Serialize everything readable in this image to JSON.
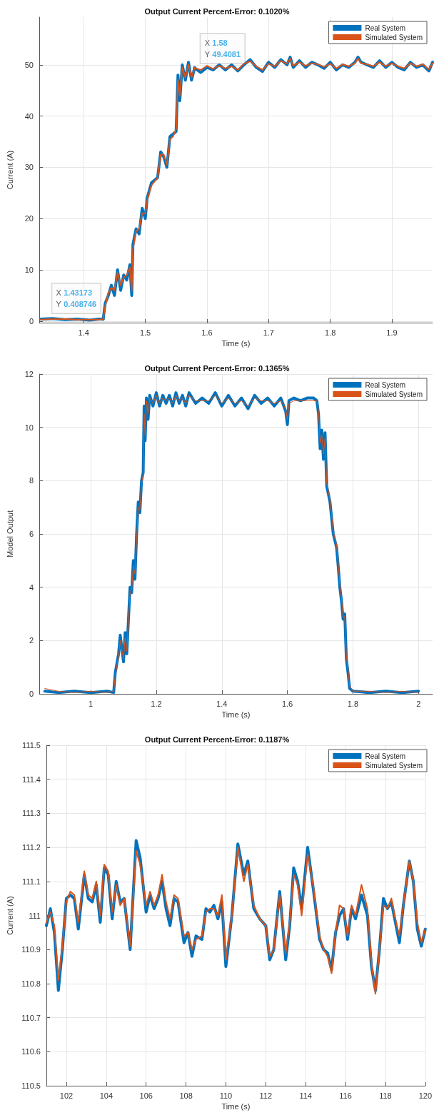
{
  "chart_data": [
    {
      "type": "line",
      "title": "Output Current Percent-Error: 0.1020%",
      "xlabel": "Time (s)",
      "ylabel": "Current (A)",
      "xlim": [
        1.328,
        1.966
      ],
      "ylim": [
        -0.3,
        59.3
      ],
      "xticks": [
        1.4,
        1.5,
        1.6,
        1.7,
        1.8,
        1.9
      ],
      "yticks": [
        0,
        10,
        20,
        30,
        40,
        50
      ],
      "grid": true,
      "legend": "top right",
      "marker": "none",
      "line_style": "solid",
      "x": [
        1.33,
        1.35,
        1.37,
        1.39,
        1.41,
        1.425,
        1.4317,
        1.435,
        1.44,
        1.445,
        1.45,
        1.455,
        1.46,
        1.465,
        1.47,
        1.475,
        1.478,
        1.48,
        1.485,
        1.49,
        1.495,
        1.5,
        1.503,
        1.51,
        1.52,
        1.525,
        1.53,
        1.535,
        1.54,
        1.545,
        1.55,
        1.553,
        1.556,
        1.56,
        1.565,
        1.57,
        1.575,
        1.58,
        1.59,
        1.6,
        1.61,
        1.62,
        1.63,
        1.64,
        1.65,
        1.66,
        1.67,
        1.68,
        1.69,
        1.7,
        1.71,
        1.72,
        1.73,
        1.735,
        1.74,
        1.75,
        1.76,
        1.77,
        1.78,
        1.79,
        1.8,
        1.81,
        1.82,
        1.83,
        1.84,
        1.845,
        1.85,
        1.86,
        1.87,
        1.88,
        1.89,
        1.9,
        1.91,
        1.92,
        1.93,
        1.94,
        1.95,
        1.96,
        1.966
      ],
      "series": [
        {
          "name": "Real System",
          "color": "#0072bd",
          "values": [
            0.4,
            0.5,
            0.3,
            0.4,
            0.2,
            0.4,
            0.4,
            3.5,
            5,
            7,
            5,
            10,
            6,
            9,
            8,
            11,
            5,
            15,
            18,
            17,
            22,
            20,
            24,
            27,
            28,
            33,
            32,
            30,
            36,
            36.5,
            37,
            48,
            43,
            50,
            47,
            50.5,
            47,
            49.4,
            48.5,
            49.5,
            49,
            50,
            49,
            50,
            48.8,
            50,
            51,
            49.5,
            48.7,
            50.5,
            49.5,
            51,
            50,
            51.5,
            49.5,
            50.8,
            49.5,
            50.5,
            50,
            49.3,
            50.5,
            49,
            50,
            49.5,
            50.5,
            51.5,
            50.5,
            50,
            49.5,
            50.8,
            49.5,
            50.5,
            49.5,
            49,
            50.5,
            49.5,
            50,
            48.8,
            50.5
          ]
        },
        {
          "name": "Simulated System",
          "color": "#d95319",
          "values": [
            0.3,
            0.4,
            0.4,
            0.3,
            0.3,
            0.3,
            0.4,
            3,
            5.5,
            6.5,
            6,
            9.5,
            7,
            8.5,
            9,
            10.5,
            6,
            14,
            17.5,
            18,
            21,
            21,
            23.5,
            26.5,
            28,
            32.5,
            32.5,
            30.5,
            35.5,
            36,
            37.5,
            47,
            44,
            49.5,
            47.5,
            50,
            47.5,
            49.4,
            49,
            49.8,
            49.2,
            49.8,
            49.3,
            49.7,
            49,
            50.2,
            50.7,
            49.7,
            49,
            50.2,
            49.7,
            50.8,
            50.2,
            51.2,
            49.8,
            50.5,
            49.8,
            50.3,
            50.1,
            49.6,
            50.2,
            49.3,
            50.1,
            49.7,
            50.3,
            51.2,
            50.3,
            50.1,
            49.7,
            50.5,
            49.7,
            50.3,
            49.7,
            49.3,
            50.3,
            49.7,
            50.1,
            49.1,
            50.3
          ]
        }
      ],
      "annotations": [
        {
          "text": "X 1.58\nY 49.4081",
          "x": 1.58,
          "y": 49.4081
        },
        {
          "text": "X 1.43173\nY 0.408746",
          "x": 1.43173,
          "y": 0.408746
        }
      ]
    },
    {
      "type": "line",
      "title": "Output Current Percent-Error: 0.1365%",
      "xlabel": "Time (s)",
      "ylabel": "Model Output",
      "xlim": [
        0.843,
        2.043
      ],
      "ylim": [
        0,
        12
      ],
      "xticks": [
        1,
        1.2,
        1.4,
        1.6,
        1.8,
        2
      ],
      "yticks": [
        0,
        2,
        4,
        6,
        8,
        10,
        12
      ],
      "grid": true,
      "legend": "top right",
      "marker": "none",
      "line_style": "solid",
      "x": [
        0.86,
        0.9,
        0.95,
        1.0,
        1.05,
        1.07,
        1.075,
        1.085,
        1.09,
        1.1,
        1.105,
        1.11,
        1.12,
        1.125,
        1.13,
        1.135,
        1.14,
        1.145,
        1.15,
        1.155,
        1.16,
        1.163,
        1.166,
        1.17,
        1.175,
        1.18,
        1.19,
        1.2,
        1.21,
        1.22,
        1.23,
        1.24,
        1.25,
        1.26,
        1.27,
        1.28,
        1.29,
        1.3,
        1.32,
        1.34,
        1.36,
        1.38,
        1.4,
        1.42,
        1.44,
        1.46,
        1.48,
        1.5,
        1.52,
        1.54,
        1.56,
        1.58,
        1.595,
        1.6,
        1.605,
        1.62,
        1.64,
        1.66,
        1.68,
        1.69,
        1.695,
        1.7,
        1.705,
        1.71,
        1.715,
        1.72,
        1.73,
        1.74,
        1.75,
        1.755,
        1.76,
        1.765,
        1.77,
        1.775,
        1.78,
        1.785,
        1.79,
        1.8,
        1.85,
        1.9,
        1.95,
        2.0
      ],
      "series": [
        {
          "name": "Real System",
          "color": "#0072bd",
          "values": [
            0.1,
            0.05,
            0.1,
            0.05,
            0.1,
            0.05,
            0.8,
            1.5,
            2.2,
            1.2,
            2.3,
            1.5,
            4,
            3.8,
            5,
            4.3,
            6,
            7.2,
            6.8,
            8,
            8.3,
            10.8,
            9.5,
            11.1,
            10.3,
            11.2,
            10.8,
            11.3,
            10.8,
            11.2,
            10.9,
            11.2,
            10.8,
            11.3,
            10.9,
            11.2,
            10.8,
            11.3,
            10.9,
            11.1,
            10.9,
            11.3,
            10.8,
            11.2,
            10.8,
            11.1,
            10.7,
            11.2,
            10.9,
            11.1,
            10.8,
            11.1,
            10.6,
            10.1,
            11,
            11.1,
            11,
            11.1,
            11.1,
            11,
            10.5,
            9.2,
            9.9,
            8.8,
            9.8,
            7.8,
            7.2,
            6,
            5.5,
            4.8,
            4,
            3.5,
            2.8,
            3,
            1.3,
            0.8,
            0.2,
            0.1,
            0.05,
            0.1,
            0.05,
            0.1
          ]
        },
        {
          "name": "Simulated System",
          "color": "#d95319",
          "values": [
            0.2,
            0.1,
            0.05,
            0.1,
            0.05,
            0.1,
            0.7,
            1.4,
            2,
            1.3,
            2.1,
            1.6,
            3.8,
            3.9,
            4.8,
            4.5,
            5.8,
            7,
            6.9,
            7.9,
            8.2,
            10.5,
            9.7,
            11,
            10.5,
            11.1,
            10.9,
            11.2,
            10.9,
            11.1,
            11,
            11.1,
            10.9,
            11.2,
            11,
            11.1,
            10.9,
            11.2,
            11,
            11,
            11,
            11.2,
            10.9,
            11.1,
            10.9,
            11,
            10.8,
            11.1,
            11,
            11,
            10.9,
            11,
            10.7,
            10.3,
            10.9,
            11,
            11,
            11,
            11,
            11,
            10.6,
            9.4,
            9.7,
            9,
            9.6,
            7.9,
            7.3,
            6.1,
            5.6,
            4.9,
            4.1,
            3.6,
            2.9,
            2.9,
            1.4,
            0.9,
            0.3,
            0.1,
            0.1,
            0.05,
            0.1,
            0.05
          ]
        }
      ]
    },
    {
      "type": "line",
      "title": "Output Current Percent-Error: 0.1187%",
      "xlabel": "Time (s)",
      "ylabel": "Current (A)",
      "xlim": [
        101,
        120
      ],
      "ylim": [
        110.5,
        111.5
      ],
      "xticks": [
        102,
        104,
        106,
        108,
        110,
        112,
        114,
        116,
        118,
        120
      ],
      "yticks": [
        110.5,
        110.6,
        110.7,
        110.8,
        110.9,
        111,
        111.1,
        111.2,
        111.3,
        111.4,
        111.5
      ],
      "grid": true,
      "legend": "top right",
      "marker": "none",
      "line_style": "solid",
      "x": [
        101.0,
        101.2,
        101.4,
        101.6,
        101.8,
        102.0,
        102.2,
        102.4,
        102.6,
        102.9,
        103.1,
        103.3,
        103.5,
        103.7,
        103.9,
        104.1,
        104.3,
        104.5,
        104.7,
        104.9,
        105.2,
        105.5,
        105.7,
        106.0,
        106.2,
        106.4,
        106.6,
        106.8,
        107.0,
        107.2,
        107.4,
        107.6,
        107.9,
        108.1,
        108.3,
        108.5,
        108.8,
        109.0,
        109.2,
        109.4,
        109.6,
        109.8,
        110.0,
        110.3,
        110.6,
        110.9,
        111.1,
        111.4,
        111.7,
        112.0,
        112.2,
        112.4,
        112.7,
        113.0,
        113.2,
        113.4,
        113.6,
        113.8,
        114.1,
        114.4,
        114.7,
        114.9,
        115.1,
        115.3,
        115.5,
        115.7,
        115.9,
        116.1,
        116.3,
        116.5,
        116.8,
        117.1,
        117.3,
        117.5,
        117.7,
        117.9,
        118.1,
        118.3,
        118.5,
        118.7,
        118.9,
        119.2,
        119.4,
        119.6,
        119.8,
        120.0
      ],
      "series": [
        {
          "name": "Real System",
          "color": "#0072bd",
          "values": [
            110.97,
            111.02,
            110.95,
            110.78,
            110.9,
            111.05,
            111.06,
            111.05,
            110.96,
            111.12,
            111.05,
            111.04,
            111.09,
            110.98,
            111.14,
            111.12,
            110.99,
            111.1,
            111.04,
            111.05,
            110.9,
            111.22,
            111.17,
            111.01,
            111.06,
            111.02,
            111.05,
            111.1,
            111.02,
            110.97,
            111.05,
            111.04,
            110.92,
            110.95,
            110.88,
            110.94,
            110.93,
            111.02,
            111.01,
            111.03,
            110.99,
            111.04,
            110.85,
            111.0,
            111.21,
            111.12,
            111.16,
            111.02,
            110.99,
            110.97,
            110.87,
            110.9,
            111.07,
            110.87,
            110.97,
            111.14,
            111.1,
            111.02,
            111.2,
            111.07,
            110.93,
            110.9,
            110.89,
            110.84,
            110.95,
            111.0,
            111.02,
            110.93,
            111.02,
            110.99,
            111.06,
            111.0,
            110.85,
            110.78,
            110.9,
            111.05,
            111.02,
            111.04,
            110.98,
            110.92,
            111.03,
            111.16,
            111.1,
            110.96,
            110.91,
            110.96
          ]
        },
        {
          "name": "Simulated System",
          "color": "#d95319",
          "values": [
            110.98,
            111.01,
            110.97,
            110.81,
            110.91,
            111.04,
            111.07,
            111.06,
            110.98,
            111.13,
            111.06,
            111.05,
            111.1,
            111.0,
            111.15,
            111.13,
            111.01,
            111.09,
            111.03,
            111.05,
            110.91,
            111.19,
            111.15,
            111.03,
            111.07,
            111.03,
            111.06,
            111.12,
            111.04,
            110.99,
            111.06,
            111.05,
            110.94,
            110.95,
            110.9,
            110.93,
            110.94,
            111.01,
            111.02,
            111.02,
            111.0,
            111.06,
            110.87,
            111.0,
            111.2,
            111.1,
            111.15,
            111.03,
            110.99,
            110.97,
            110.88,
            110.9,
            111.06,
            110.89,
            110.98,
            111.12,
            111.09,
            111.0,
            111.18,
            111.08,
            110.94,
            110.9,
            110.88,
            110.83,
            110.95,
            111.03,
            111.02,
            110.94,
            111.03,
            111.0,
            111.09,
            111.02,
            110.86,
            110.77,
            110.9,
            111.03,
            111.02,
            111.05,
            110.99,
            110.94,
            111.03,
            111.16,
            111.1,
            110.98,
            110.92,
            110.96
          ]
        }
      ]
    }
  ]
}
